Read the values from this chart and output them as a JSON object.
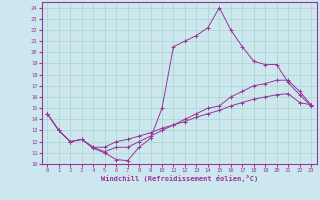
{
  "xlabel": "Windchill (Refroidissement éolien,°C)",
  "bg_color": "#cce8ee",
  "line_color": "#993399",
  "grid_color": "#aad4cc",
  "xlim": [
    -0.5,
    23.5
  ],
  "ylim": [
    10,
    24.5
  ],
  "xticks": [
    0,
    1,
    2,
    3,
    4,
    5,
    6,
    7,
    8,
    9,
    10,
    11,
    12,
    13,
    14,
    15,
    16,
    17,
    18,
    19,
    20,
    21,
    22,
    23
  ],
  "yticks": [
    10,
    11,
    12,
    13,
    14,
    15,
    16,
    17,
    18,
    19,
    20,
    21,
    22,
    23,
    24
  ],
  "lines": [
    {
      "x": [
        0,
        1,
        2,
        3,
        4,
        5,
        6,
        7,
        8,
        9,
        10,
        11,
        12,
        13,
        14,
        15,
        16,
        17,
        18,
        19,
        20,
        21,
        22,
        23
      ],
      "y": [
        14.5,
        13.0,
        12.0,
        12.2,
        11.4,
        11.0,
        10.4,
        10.3,
        11.5,
        12.3,
        15.0,
        20.5,
        21.0,
        21.5,
        22.2,
        24.0,
        22.0,
        20.5,
        19.2,
        18.9,
        18.9,
        17.3,
        16.2,
        15.2
      ]
    },
    {
      "x": [
        0,
        1,
        2,
        3,
        4,
        5,
        6,
        7,
        8,
        9,
        10,
        11,
        12,
        13,
        14,
        15,
        16,
        17,
        18,
        19,
        20,
        21,
        22,
        23
      ],
      "y": [
        14.5,
        13.0,
        12.0,
        12.2,
        11.5,
        11.1,
        11.5,
        11.5,
        12.0,
        12.5,
        13.0,
        13.5,
        14.0,
        14.5,
        15.0,
        15.2,
        16.0,
        16.5,
        17.0,
        17.2,
        17.5,
        17.5,
        16.5,
        15.3
      ]
    },
    {
      "x": [
        0,
        1,
        2,
        3,
        4,
        5,
        6,
        7,
        8,
        9,
        10,
        11,
        12,
        13,
        14,
        15,
        16,
        17,
        18,
        19,
        20,
        21,
        22,
        23
      ],
      "y": [
        14.5,
        13.0,
        12.0,
        12.2,
        11.5,
        11.5,
        12.0,
        12.2,
        12.5,
        12.8,
        13.2,
        13.5,
        13.8,
        14.2,
        14.5,
        14.8,
        15.2,
        15.5,
        15.8,
        16.0,
        16.2,
        16.3,
        15.5,
        15.3
      ]
    }
  ]
}
